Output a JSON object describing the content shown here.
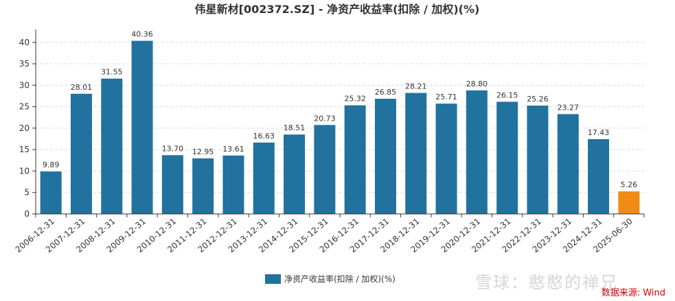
{
  "chart_data": {
    "type": "bar",
    "title": "伟星新材[002372.SZ] - 净资产收益率(扣除 / 加权)(%)",
    "categories": [
      "2006-12-31",
      "2007-12-31",
      "2008-12-31",
      "2009-12-31",
      "2010-12-31",
      "2011-12-31",
      "2012-12-31",
      "2013-12-31",
      "2014-12-31",
      "2015-12-31",
      "2016-12-31",
      "2017-12-31",
      "2018-12-31",
      "2019-12-31",
      "2020-12-31",
      "2021-12-31",
      "2022-12-31",
      "2023-12-31",
      "2024-12-31",
      "2025-06-30"
    ],
    "values": [
      9.89,
      28.01,
      31.55,
      40.36,
      13.7,
      12.95,
      13.61,
      16.63,
      18.51,
      20.73,
      25.32,
      26.85,
      28.21,
      25.71,
      28.8,
      26.15,
      25.26,
      23.27,
      17.43,
      5.26
    ],
    "value_labels": [
      "9.89",
      "28.01",
      "31.55",
      "40.36",
      "13.70",
      "12.95",
      "13.61",
      "16.63",
      "18.51",
      "20.73",
      "25.32",
      "26.85",
      "28.21",
      "25.71",
      "28.80",
      "26.15",
      "25.26",
      "23.27",
      "17.43",
      "5.26"
    ],
    "series_name": "净资产收益率(扣除 / 加权)(%)",
    "ylim": [
      0,
      43
    ],
    "yticks": [
      0,
      5,
      10,
      15,
      20,
      25,
      30,
      35,
      40
    ],
    "grid": true,
    "legend_position": "bottom-center",
    "bar_color": "#21729e",
    "highlight_color": "#f28b16",
    "highlight_index": 19
  },
  "watermark": "雪球：憨憨的禅兄",
  "source": "数据来源: Wind"
}
